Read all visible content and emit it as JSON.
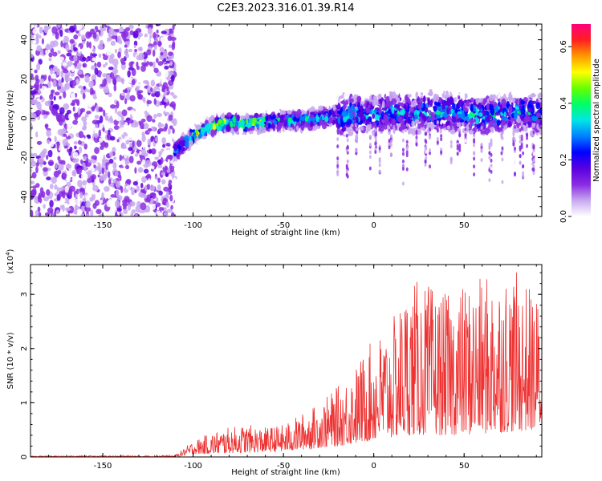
{
  "title": "C2E3.2023.316.01.39.R14",
  "chart_data": [
    {
      "type": "heatmap",
      "xlabel": "Height of straight line (km)",
      "ylabel": "Frequency (Hz)",
      "xlim": [
        -190,
        93
      ],
      "ylim": [
        -50,
        48
      ],
      "xticks": [
        -150,
        -100,
        -50,
        0,
        50
      ],
      "yticks": [
        -40,
        -20,
        0,
        20,
        40
      ],
      "colorbar": {
        "label": "Normalized spectral amplitude",
        "range": [
          0.0,
          0.68
        ],
        "ticks": [
          0.0,
          0.2,
          0.4,
          0.6
        ],
        "colors": [
          "#ffffff",
          "#c8a8f0",
          "#8a2be2",
          "#5a00e0",
          "#0000ff",
          "#0080ff",
          "#00e5e5",
          "#00ff66",
          "#66ff00",
          "#ffff00",
          "#ff9900",
          "#ff2020",
          "#ff007f"
        ]
      },
      "features": {
        "noise_region_x": [
          -190,
          -110
        ],
        "ridge": [
          {
            "x": -110,
            "y": -17
          },
          {
            "x": -100,
            "y": -9
          },
          {
            "x": -90,
            "y": -4
          },
          {
            "x": -80,
            "y": -2
          },
          {
            "x": -70,
            "y": -3
          },
          {
            "x": -60,
            "y": -2
          },
          {
            "x": -50,
            "y": -1
          },
          {
            "x": -40,
            "y": -1
          },
          {
            "x": -30,
            "y": 0
          },
          {
            "x": -20,
            "y": 1
          },
          {
            "x": -10,
            "y": 2
          },
          {
            "x": 0,
            "y": 2
          },
          {
            "x": 10,
            "y": 3
          },
          {
            "x": 20,
            "y": 2
          },
          {
            "x": 30,
            "y": 3
          },
          {
            "x": 40,
            "y": 3
          },
          {
            "x": 50,
            "y": 2
          },
          {
            "x": 60,
            "y": 1
          },
          {
            "x": 70,
            "y": 2
          },
          {
            "x": 80,
            "y": 3
          },
          {
            "x": 90,
            "y": 2
          }
        ]
      }
    },
    {
      "type": "line",
      "xlabel": "Height of straight line (km)",
      "ylabel": "SNR (10 * v/v)",
      "multiplier": "(x10",
      "multiplier_exp": "4",
      "multiplier_close": ")",
      "color": "#ee3333",
      "xlim": [
        -190,
        93
      ],
      "ylim": [
        0,
        3.55
      ],
      "xticks": [
        -150,
        -100,
        -50,
        0,
        50
      ],
      "yticks": [
        0,
        1,
        2,
        3
      ],
      "envelope": [
        {
          "x": -190,
          "y": 0.02
        },
        {
          "x": -110,
          "y": 0.03
        },
        {
          "x": -100,
          "y": 0.3
        },
        {
          "x": -90,
          "y": 0.45
        },
        {
          "x": -80,
          "y": 0.55
        },
        {
          "x": -70,
          "y": 0.6
        },
        {
          "x": -60,
          "y": 0.55
        },
        {
          "x": -50,
          "y": 0.6
        },
        {
          "x": -40,
          "y": 0.8
        },
        {
          "x": -30,
          "y": 1.0
        },
        {
          "x": -20,
          "y": 1.3
        },
        {
          "x": -10,
          "y": 1.7
        },
        {
          "x": 0,
          "y": 2.2
        },
        {
          "x": 10,
          "y": 2.5
        },
        {
          "x": 20,
          "y": 3.3
        },
        {
          "x": 30,
          "y": 3.2
        },
        {
          "x": 40,
          "y": 3.0
        },
        {
          "x": 50,
          "y": 3.2
        },
        {
          "x": 60,
          "y": 3.3
        },
        {
          "x": 70,
          "y": 3.5
        },
        {
          "x": 80,
          "y": 3.4
        },
        {
          "x": 93,
          "y": 2.9
        }
      ],
      "baseline": [
        {
          "x": -190,
          "y": 0.0
        },
        {
          "x": -110,
          "y": 0.0
        },
        {
          "x": -100,
          "y": 0.05
        },
        {
          "x": -50,
          "y": 0.1
        },
        {
          "x": -20,
          "y": 0.2
        },
        {
          "x": 0,
          "y": 0.3
        },
        {
          "x": 20,
          "y": 0.4
        },
        {
          "x": 50,
          "y": 0.4
        },
        {
          "x": 93,
          "y": 0.5
        }
      ]
    }
  ]
}
